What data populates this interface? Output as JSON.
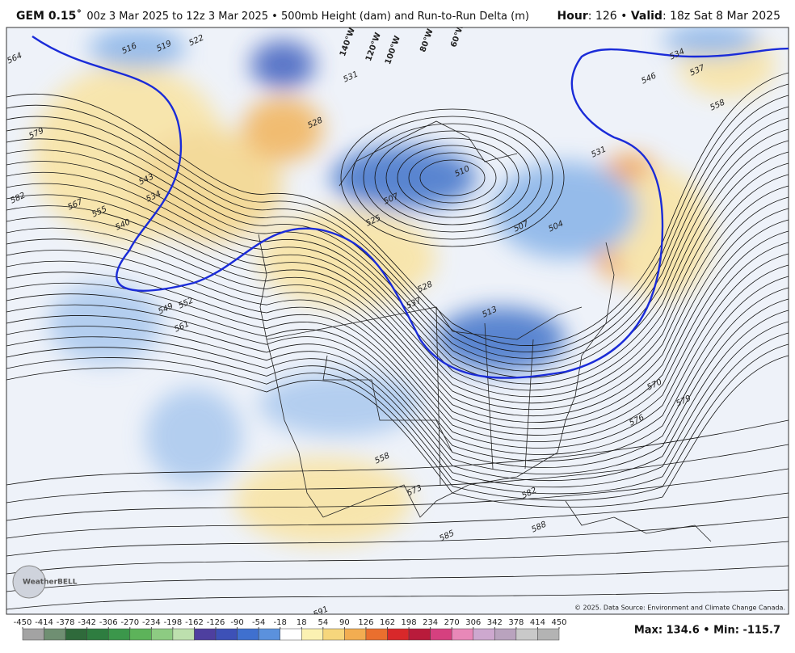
{
  "header": {
    "model": "GEM 0.15˚",
    "run": "00z 3 Mar 2025 to 12z 3 Mar 2025 • 500mb Height (dam) and Run-to-Run Delta (m)",
    "hour_label": "Hour",
    "hour_text": ": 126 • ",
    "valid_label": "Valid",
    "valid_text": ": 18z Sat 8 Mar 2025"
  },
  "map": {
    "longitude_labels": [
      "140°W",
      "120°W",
      "100°W",
      "80°W",
      "60°W"
    ],
    "contour_labels": [
      "564",
      "516",
      "519",
      "522",
      "579",
      "582",
      "567",
      "555",
      "543",
      "534",
      "540",
      "549",
      "552",
      "561",
      "531",
      "528",
      "507",
      "525",
      "528",
      "537",
      "513",
      "510",
      "507",
      "504",
      "531",
      "534",
      "537",
      "546",
      "558",
      "570",
      "579",
      "576",
      "573",
      "582",
      "585",
      "588",
      "558",
      "591"
    ],
    "copyright": "© 2025. Data Source: Environment and Climate Change Canada.",
    "logo": "WeatherBELL"
  },
  "colorbar": {
    "ticks": [
      -450,
      -414,
      -378,
      -342,
      -306,
      -270,
      -234,
      -198,
      -162,
      -126,
      -90,
      -54,
      -18,
      18,
      54,
      90,
      126,
      162,
      198,
      234,
      270,
      306,
      342,
      378,
      414,
      450
    ],
    "colors": [
      "#a3a3a3",
      "#6f8f72",
      "#2f6a3b",
      "#2e7d40",
      "#3b974b",
      "#5db35a",
      "#8dcb82",
      "#bde0ae",
      "#4e3f9f",
      "#3d51b7",
      "#3f70cf",
      "#5b91dd",
      "#ffffff",
      "#fbf1b2",
      "#f6d67c",
      "#f2ad51",
      "#ea6f2e",
      "#d8282a",
      "#b91b3b",
      "#d6407f",
      "#e888b8",
      "#cda8cf",
      "#b9a3be",
      "#c9c9c9",
      "#b3b3b3"
    ]
  },
  "stats": {
    "text": "Max: 134.6 • Min: -115.7"
  }
}
